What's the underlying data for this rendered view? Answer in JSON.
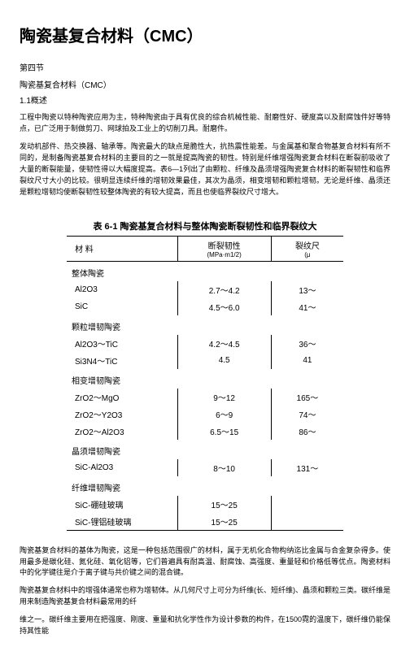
{
  "title": "陶瓷基复合材料（CMC）",
  "section_label": "第四节",
  "subtitle": "陶瓷基复合材料（CMC）",
  "overview_label": "1.1概述",
  "para1": "工程中陶瓷以特种陶瓷应用为主，特种陶瓷由于具有优良的综合机械性能、耐磨性好、硬度高以及耐腐蚀件好等特点，已广泛用于制做剪刀、网球拍及工业上的切削刀具。耐磨件。",
  "para2": "发动机部件、热交换器、轴承等。陶瓷最大的缺点是脆性大，抗热震性能差。与金属基和聚合物基复合材料有所不同的，是制备陶瓷基复合材料的主要目的之一就是提高陶瓷的韧性。特别是纤维增强陶瓷复合材料在断裂前吸收了大量的断裂能量，使韧性得以大幅度提高。表6—1列出了由颗粒、纤维及晶须增强陶瓷复合材料的断裂韧性和临界裂纹尺寸大小的比较。很明显连续纤维的增韧效果最佳，其次为晶须，相变增韧和颗粒增韧。无论是纤维、晶须还是颗粒增韧均使断裂韧性较整体陶瓷的有较大提高，而且也使临界裂纹尺寸增大。",
  "table": {
    "caption": "表 6-1  陶瓷基复合材料与整体陶瓷断裂韧性和临界裂纹大",
    "header_material": "材  料",
    "header_toughness": "断裂韧性",
    "header_toughness_unit": "(MPa·m1/2)",
    "header_crack": "裂纹尺",
    "header_crack_unit": "(μ",
    "groups": [
      {
        "name": "整体陶瓷",
        "rows": [
          {
            "mat": "Al2O3",
            "t": "2.7～4.2",
            "c": "13～"
          },
          {
            "mat": "SiC",
            "t": "4.5～6.0",
            "c": "41～"
          }
        ]
      },
      {
        "name": "颗粒增韧陶瓷",
        "rows": [
          {
            "mat": "Al2O3～TiC",
            "t": "4.2～4.5",
            "c": "36～"
          },
          {
            "mat": "Si3N4～TiC",
            "t": "4.5",
            "c": "41"
          }
        ]
      },
      {
        "name": "相变增韧陶瓷",
        "rows": [
          {
            "mat": "ZrO2～MgO",
            "t": "9～12",
            "c": "165～"
          },
          {
            "mat": "ZrO2～Y2O3",
            "t": "6～9",
            "c": "74～"
          },
          {
            "mat": "ZrO2～Al2O3",
            "t": "6.5～15",
            "c": "86～"
          }
        ]
      },
      {
        "name": "晶须增韧陶瓷",
        "rows": [
          {
            "mat": "SiC-Al2O3",
            "t": "8～10",
            "c": "131～"
          }
        ]
      },
      {
        "name": "纤维增韧陶瓷",
        "rows": [
          {
            "mat": "SiC-硼硅玻璃",
            "t": "15～25",
            "c": ""
          },
          {
            "mat": "SiC-锂铝硅玻璃",
            "t": "15～25",
            "c": ""
          }
        ]
      }
    ]
  },
  "para3": "陶瓷基复合材料的基体为陶瓷，这是一种包括范围很广的材料，属于无机化合物构纳迄比金属与合金复杂得多。使用最多是碳化硅、氮化硅、氧化铝等，它们普遍具有耐高温、耐腐蚀、高强度、重量轻和价格低等优点。陶瓷材料中的化学键往是介于离子键与共价键之间的混合键。",
  "para4": "陶瓷基复合材料中的增强体通常也称为增韧体。从几何尺寸上可分为纤维(长、短纤维)、晶须和颗粒三类。碳纤维是用来制造陶瓷基复合材料最常用的纤",
  "para5": "维之一。碳纤维主要用在把强度、刚度、重量和抗化学性作为设计参数的构件，在1500霓的温度下，碳纤维仍能保持其性能"
}
